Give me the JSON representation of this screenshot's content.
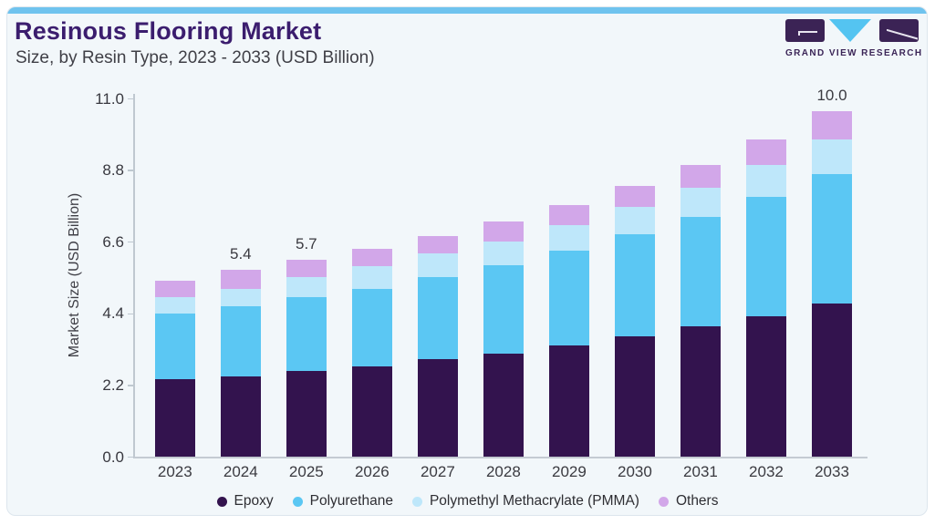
{
  "page": {
    "title": "Resinous Flooring Market",
    "subtitle": "Size, by Resin Type, 2023 - 2033 (USD Billion)"
  },
  "branding": {
    "wordmark": "GRAND VIEW RESEARCH"
  },
  "colors": {
    "accent_bar": "#6fc3ee",
    "card_background": "#f2f7fa",
    "title_text": "#3b1d6e",
    "epoxy": "#33134e",
    "polyurethane": "#5bc7f3",
    "pmma": "#bee7fa",
    "others": "#d2a7e9",
    "logo_triangle": "#54c4f1",
    "logo_rect": "#3b2355"
  },
  "chart_data": {
    "type": "bar",
    "stacked": true,
    "title": "Resinous Flooring Market",
    "subtitle": "Size, by Resin Type, 2023 - 2033 (USD Billion)",
    "xlabel": "",
    "ylabel": "Market Size (USD Billion)",
    "ylim": [
      0,
      11
    ],
    "ytick_labels": [
      "0.0",
      "2.2",
      "4.4",
      "6.6",
      "8.8",
      "11.0"
    ],
    "grid": false,
    "legend_position": "bottom",
    "categories": [
      "2023",
      "2024",
      "2025",
      "2026",
      "2027",
      "2028",
      "2029",
      "2030",
      "2031",
      "2032",
      "2033"
    ],
    "series": [
      {
        "name": "Epoxy",
        "color": "#33134e",
        "values": [
          2.24,
          2.34,
          2.48,
          2.63,
          2.83,
          3.0,
          3.22,
          3.49,
          3.78,
          4.08,
          4.45
        ]
      },
      {
        "name": "Polyurethane",
        "color": "#5bc7f3",
        "values": [
          1.9,
          2.02,
          2.13,
          2.24,
          2.38,
          2.55,
          2.74,
          2.95,
          3.16,
          3.44,
          3.73
        ]
      },
      {
        "name": "Polymethyl Methacrylate (PMMA)",
        "color": "#bee7fa",
        "values": [
          0.48,
          0.51,
          0.59,
          0.64,
          0.67,
          0.69,
          0.73,
          0.78,
          0.83,
          0.91,
          1.0
        ]
      },
      {
        "name": "Others",
        "color": "#d2a7e9",
        "values": [
          0.48,
          0.53,
          0.5,
          0.5,
          0.51,
          0.58,
          0.6,
          0.62,
          0.68,
          0.74,
          0.82
        ]
      }
    ],
    "totals": [
      5.1,
      5.4,
      5.7,
      6.01,
      6.39,
      6.82,
      7.29,
      7.84,
      8.45,
      9.17,
      10.0
    ],
    "bar_value_labels": [
      "",
      "5.4",
      "5.7",
      "",
      "",
      "",
      "",
      "",
      "",
      "",
      "10.0"
    ]
  }
}
